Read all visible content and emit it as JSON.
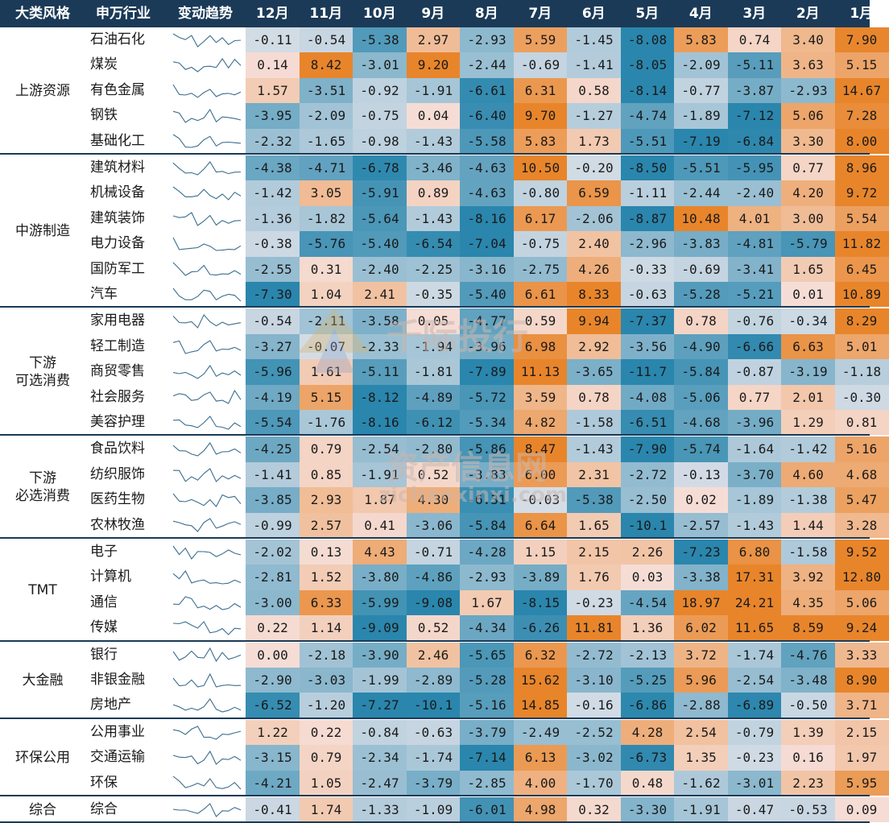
{
  "headers": [
    "大类风格",
    "申万行业",
    "变动趋势",
    "12月",
    "11月",
    "10月",
    "9月",
    "8月",
    "7月",
    "6月",
    "5月",
    "4月",
    "3月",
    "2月",
    "1月"
  ],
  "groups": [
    {
      "label_lines": [
        "上游资源"
      ],
      "rows": [
        {
          "name": "石油石化",
          "values": [
            "-0.11",
            "-0.54",
            "-5.38",
            "2.97",
            "-2.93",
            "5.59",
            "-1.45",
            "-8.08",
            "5.83",
            "0.74",
            "3.40",
            "7.90"
          ]
        },
        {
          "name": "煤炭",
          "values": [
            "0.14",
            "8.42",
            "-3.01",
            "9.20",
            "-2.44",
            "-0.69",
            "-1.41",
            "-8.05",
            "-2.09",
            "-5.11",
            "3.63",
            "5.15"
          ]
        },
        {
          "name": "有色金属",
          "values": [
            "1.57",
            "-3.51",
            "-0.92",
            "-1.91",
            "-6.61",
            "6.31",
            "0.58",
            "-8.14",
            "-0.77",
            "-3.87",
            "-2.93",
            "14.67"
          ]
        },
        {
          "name": "钢铁",
          "values": [
            "-3.95",
            "-2.09",
            "-0.75",
            "0.04",
            "-6.40",
            "9.70",
            "-1.27",
            "-4.74",
            "-1.89",
            "-7.12",
            "5.06",
            "7.28"
          ]
        },
        {
          "name": "基础化工",
          "values": [
            "-2.32",
            "-1.65",
            "-0.98",
            "-1.43",
            "-5.58",
            "5.83",
            "1.73",
            "-5.51",
            "-7.19",
            "-6.84",
            "3.30",
            "8.00"
          ]
        }
      ]
    },
    {
      "label_lines": [
        "中游制造"
      ],
      "rows": [
        {
          "name": "建筑材料",
          "values": [
            "-4.38",
            "-4.71",
            "-6.78",
            "-3.46",
            "-4.63",
            "10.50",
            "-0.20",
            "-8.50",
            "-5.51",
            "-5.95",
            "0.77",
            "8.96"
          ]
        },
        {
          "name": "机械设备",
          "values": [
            "-1.42",
            "3.05",
            "-5.91",
            "0.89",
            "-4.63",
            "-0.80",
            "6.59",
            "-1.11",
            "-2.44",
            "-2.40",
            "4.20",
            "9.72"
          ]
        },
        {
          "name": "建筑装饰",
          "values": [
            "-1.36",
            "-1.82",
            "-5.64",
            "-1.43",
            "-8.16",
            "6.17",
            "-2.06",
            "-8.87",
            "10.48",
            "4.01",
            "3.00",
            "5.54"
          ]
        },
        {
          "name": "电力设备",
          "values": [
            "-0.38",
            "-5.76",
            "-5.40",
            "-6.54",
            "-7.04",
            "-0.75",
            "2.40",
            "-2.96",
            "-3.83",
            "-4.81",
            "-5.79",
            "11.82"
          ]
        },
        {
          "name": "国防军工",
          "values": [
            "-2.55",
            "0.31",
            "-2.40",
            "-2.25",
            "-3.16",
            "-2.75",
            "4.26",
            "-0.33",
            "-0.69",
            "-3.41",
            "1.65",
            "6.45"
          ]
        },
        {
          "name": "汽车",
          "values": [
            "-7.30",
            "1.04",
            "2.41",
            "-0.35",
            "-5.40",
            "6.61",
            "8.33",
            "-0.63",
            "-5.28",
            "-5.21",
            "0.01",
            "10.89"
          ]
        }
      ]
    },
    {
      "label_lines": [
        "下游",
        "可选消费"
      ],
      "rows": [
        {
          "name": "家用电器",
          "values": [
            "-0.54",
            "-2.11",
            "-3.58",
            "0.05",
            "-4.77",
            "0.59",
            "9.94",
            "-7.37",
            "0.78",
            "-0.76",
            "-0.34",
            "8.29"
          ]
        },
        {
          "name": "轻工制造",
          "values": [
            "-3.27",
            "-0.07",
            "-2.33",
            "-1.94",
            "-3.96",
            "6.98",
            "2.92",
            "-3.56",
            "-4.90",
            "-6.66",
            "6.63",
            "5.01"
          ]
        },
        {
          "name": "商贸零售",
          "values": [
            "-5.96",
            "1.61",
            "-5.11",
            "-1.81",
            "-7.89",
            "11.13",
            "-3.65",
            "-11.7",
            "-5.84",
            "-0.87",
            "-3.19",
            "-1.18"
          ]
        },
        {
          "name": "社会服务",
          "values": [
            "-4.19",
            "5.15",
            "-8.12",
            "-4.89",
            "-5.72",
            "3.59",
            "0.78",
            "-4.08",
            "-5.06",
            "0.77",
            "2.01",
            "-0.30"
          ]
        },
        {
          "name": "美容护理",
          "values": [
            "-5.54",
            "-1.76",
            "-8.16",
            "-6.12",
            "-5.34",
            "4.82",
            "-1.58",
            "-6.51",
            "-4.68",
            "-3.96",
            "1.29",
            "0.81"
          ]
        }
      ]
    },
    {
      "label_lines": [
        "下游",
        "必选消费"
      ],
      "rows": [
        {
          "name": "食品饮料",
          "values": [
            "-4.25",
            "0.79",
            "-2.54",
            "-2.80",
            "-5.86",
            "8.47",
            "-1.43",
            "-7.90",
            "-5.74",
            "-1.64",
            "-1.42",
            "5.16"
          ]
        },
        {
          "name": "纺织服饰",
          "values": [
            "-1.41",
            "0.85",
            "-1.91",
            "0.52",
            "-3.83",
            "6.00",
            "2.31",
            "-2.72",
            "-0.13",
            "-3.70",
            "4.60",
            "4.68"
          ]
        },
        {
          "name": "医药生物",
          "values": [
            "-3.85",
            "2.93",
            "1.87",
            "4.30",
            "-6.31",
            "-0.03",
            "-5.38",
            "-2.50",
            "0.02",
            "-1.89",
            "-1.38",
            "5.47"
          ]
        },
        {
          "name": "农林牧渔",
          "values": [
            "-0.99",
            "2.57",
            "0.41",
            "-3.06",
            "-5.84",
            "6.64",
            "1.65",
            "-10.1",
            "-2.57",
            "-1.43",
            "1.44",
            "3.28"
          ]
        }
      ]
    },
    {
      "label_lines": [
        "TMT"
      ],
      "rows": [
        {
          "name": "电子",
          "values": [
            "-2.02",
            "0.13",
            "4.43",
            "-0.71",
            "-4.28",
            "1.15",
            "2.15",
            "2.26",
            "-7.23",
            "6.80",
            "-1.58",
            "9.52"
          ]
        },
        {
          "name": "计算机",
          "values": [
            "-2.81",
            "1.52",
            "-3.80",
            "-4.86",
            "-2.93",
            "-3.89",
            "1.76",
            "0.03",
            "-3.38",
            "17.31",
            "3.92",
            "12.80"
          ]
        },
        {
          "name": "通信",
          "values": [
            "-3.00",
            "6.33",
            "-5.99",
            "-9.08",
            "1.67",
            "-8.15",
            "-0.23",
            "-4.54",
            "18.97",
            "24.21",
            "4.35",
            "5.06"
          ]
        },
        {
          "name": "传媒",
          "values": [
            "0.22",
            "1.14",
            "-9.09",
            "0.52",
            "-4.34",
            "-6.26",
            "11.81",
            "1.36",
            "6.02",
            "11.65",
            "8.59",
            "9.24"
          ]
        }
      ]
    },
    {
      "label_lines": [
        "大金融"
      ],
      "rows": [
        {
          "name": "银行",
          "values": [
            "0.00",
            "-2.18",
            "-3.90",
            "2.46",
            "-5.65",
            "6.32",
            "-2.72",
            "-2.13",
            "3.72",
            "-1.74",
            "-4.76",
            "3.33"
          ]
        },
        {
          "name": "非银金融",
          "values": [
            "-2.90",
            "-3.03",
            "-1.99",
            "-2.89",
            "-5.28",
            "15.62",
            "-3.10",
            "-5.25",
            "5.96",
            "-2.54",
            "-3.48",
            "8.90"
          ]
        },
        {
          "name": "房地产",
          "values": [
            "-6.52",
            "-1.20",
            "-7.27",
            "-10.1",
            "-5.16",
            "14.85",
            "-0.16",
            "-6.86",
            "-2.88",
            "-6.89",
            "-0.50",
            "3.71"
          ]
        }
      ]
    },
    {
      "label_lines": [
        "环保公用"
      ],
      "rows": [
        {
          "name": "公用事业",
          "values": [
            "1.22",
            "0.22",
            "-0.84",
            "-0.63",
            "-3.79",
            "-2.49",
            "-2.52",
            "4.28",
            "2.54",
            "-0.79",
            "1.39",
            "2.15"
          ]
        },
        {
          "name": "交通运输",
          "values": [
            "-3.15",
            "0.79",
            "-2.34",
            "-1.74",
            "-7.14",
            "6.13",
            "-3.02",
            "-6.73",
            "1.35",
            "-0.23",
            "0.16",
            "1.97"
          ]
        },
        {
          "name": "环保",
          "values": [
            "-4.21",
            "1.05",
            "-2.47",
            "-3.79",
            "-2.85",
            "4.00",
            "-1.70",
            "0.48",
            "-1.62",
            "-3.01",
            "2.23",
            "5.95"
          ]
        }
      ]
    },
    {
      "label_lines": [
        "综合"
      ],
      "rows": [
        {
          "name": "综合",
          "values": [
            "-0.41",
            "1.74",
            "-1.33",
            "-1.09",
            "-6.01",
            "4.98",
            "0.32",
            "-3.30",
            "-1.91",
            "-0.47",
            "-0.53",
            "0.09"
          ]
        }
      ]
    }
  ],
  "colors": {
    "header_bg": "#1b3a57",
    "positive_strong": "#e8852b",
    "positive_light": "#f5ddd6",
    "negative_light": "#d5dde6",
    "negative_strong": "#2a86ad",
    "sparkline": "#3b6e8f"
  },
  "watermarks": [
    "千际投行",
    "资产信息网",
    "zichanxinxi.com"
  ],
  "chart_data": {
    "type": "heatmap",
    "columns": [
      "12月",
      "11月",
      "10月",
      "9月",
      "8月",
      "7月",
      "6月",
      "5月",
      "4月",
      "3月",
      "2月",
      "1月"
    ],
    "note_source": "values in groups[].rows[].values"
  }
}
